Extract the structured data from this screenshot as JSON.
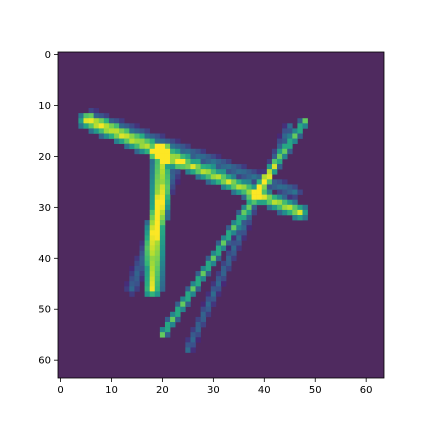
{
  "chart_data": {
    "type": "heatmap",
    "title": "",
    "xlabel": "",
    "ylabel": "",
    "grid": false,
    "colormap": "viridis",
    "background_color": "#4f2a5f",
    "image_size": [
      64,
      64
    ],
    "xlim": [
      -0.5,
      63.5
    ],
    "ylim": [
      63.5,
      -0.5
    ],
    "x_ticks": [
      0,
      10,
      20,
      30,
      40,
      50,
      60
    ],
    "y_ticks": [
      0,
      10,
      20,
      30,
      40,
      50,
      60
    ],
    "x_tick_labels": [
      "0",
      "10",
      "20",
      "30",
      "40",
      "50",
      "60"
    ],
    "y_tick_labels": [
      "0",
      "10",
      "20",
      "30",
      "40",
      "50",
      "60"
    ],
    "lines": [
      {
        "name": "diagonal-bar",
        "start": [
          5,
          13
        ],
        "end": [
          47,
          31
        ],
        "width": 1.6,
        "intensity": 0.95
      },
      {
        "name": "diagonal-bar-shadow",
        "start": [
          6,
          12
        ],
        "end": [
          46,
          27
        ],
        "width": 1.4,
        "intensity": 0.35
      },
      {
        "name": "vertical-bar",
        "start": [
          20,
          19
        ],
        "end": [
          18,
          46
        ],
        "width": 2.0,
        "intensity": 0.98
      },
      {
        "name": "vertical-bar-shadow",
        "start": [
          23,
          21
        ],
        "end": [
          14,
          46
        ],
        "width": 1.4,
        "intensity": 0.3
      },
      {
        "name": "long-diagonal",
        "start": [
          48,
          13
        ],
        "end": [
          20,
          55
        ],
        "width": 0.9,
        "intensity": 0.75
      },
      {
        "name": "long-diagonal-shadow",
        "start": [
          45,
          14
        ],
        "end": [
          25,
          58
        ],
        "width": 1.0,
        "intensity": 0.32
      }
    ]
  }
}
